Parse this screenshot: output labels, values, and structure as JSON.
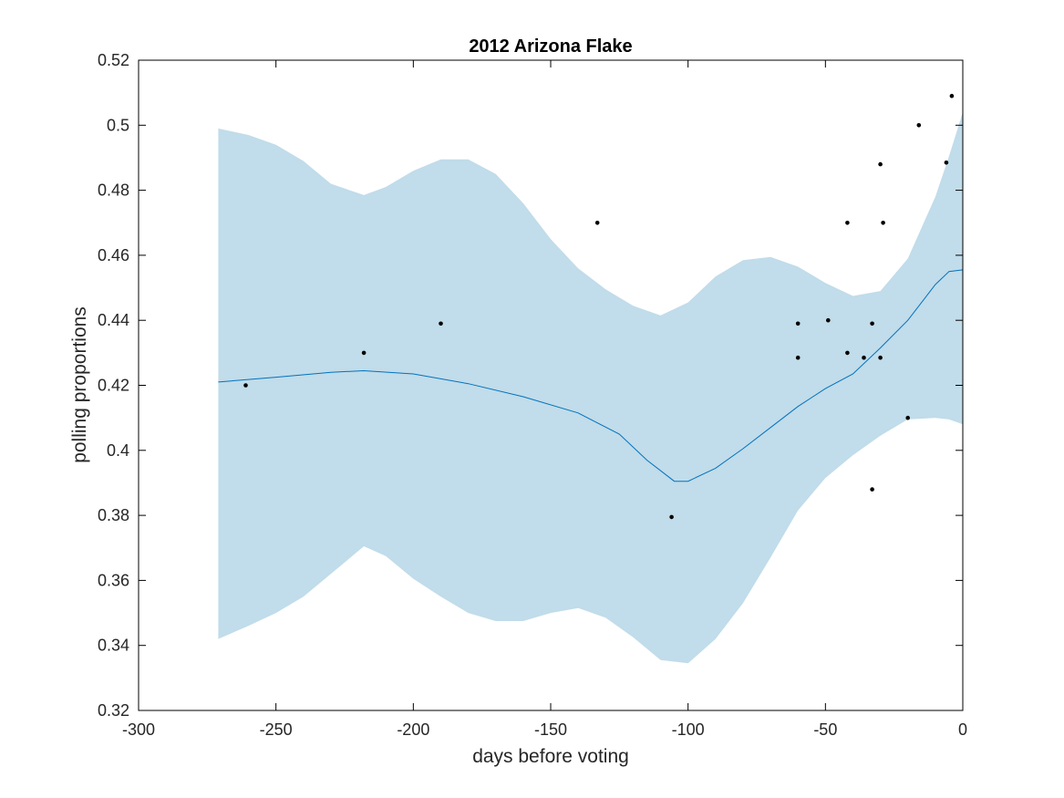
{
  "chart_data": {
    "type": "scatter",
    "title": "2012 Arizona Flake",
    "xlabel": "days before voting",
    "ylabel": "polling proportions",
    "xlim": [
      -300,
      0
    ],
    "ylim": [
      0.32,
      0.52
    ],
    "xticks": [
      -300,
      -250,
      -200,
      -150,
      -100,
      -50,
      0
    ],
    "yticks": [
      0.32,
      0.34,
      0.36,
      0.38,
      0.4,
      0.42,
      0.44,
      0.46,
      0.48,
      0.5,
      0.52
    ],
    "grid": false,
    "colors": {
      "band": "#c1dcea",
      "line": "#0072bd",
      "points": "#000000"
    },
    "series": [
      {
        "kind": "band",
        "x": [
          -271,
          -260,
          -250,
          -240,
          -230,
          -218,
          -210,
          -200,
          -190,
          -180,
          -170,
          -160,
          -150,
          -140,
          -130,
          -120,
          -110,
          -100,
          -90,
          -80,
          -70,
          -60,
          -50,
          -40,
          -30,
          -20,
          -10,
          -5,
          0
        ],
        "upper": [
          0.499,
          0.497,
          0.494,
          0.489,
          0.482,
          0.4785,
          0.481,
          0.486,
          0.4895,
          0.4895,
          0.485,
          0.476,
          0.465,
          0.456,
          0.4495,
          0.4445,
          0.4415,
          0.4455,
          0.4535,
          0.4585,
          0.4595,
          0.4565,
          0.4515,
          0.4475,
          0.449,
          0.459,
          0.478,
          0.4905,
          0.504
        ],
        "lower": [
          0.342,
          0.346,
          0.35,
          0.355,
          0.362,
          0.3705,
          0.3675,
          0.3605,
          0.355,
          0.35,
          0.3475,
          0.3475,
          0.35,
          0.3515,
          0.3485,
          0.3425,
          0.3355,
          0.3345,
          0.342,
          0.353,
          0.367,
          0.3815,
          0.3915,
          0.3985,
          0.4045,
          0.4095,
          0.41,
          0.4095,
          0.408
        ]
      },
      {
        "kind": "line",
        "x": [
          -271,
          -250,
          -230,
          -218,
          -200,
          -180,
          -160,
          -140,
          -125,
          -115,
          -105,
          -100,
          -90,
          -80,
          -70,
          -60,
          -50,
          -40,
          -30,
          -20,
          -10,
          -5,
          0
        ],
        "y": [
          0.421,
          0.4225,
          0.424,
          0.4245,
          0.4235,
          0.4205,
          0.4165,
          0.4115,
          0.405,
          0.397,
          0.3905,
          0.3905,
          0.3945,
          0.4005,
          0.407,
          0.4135,
          0.419,
          0.4235,
          0.4315,
          0.44,
          0.451,
          0.455,
          0.4555
        ]
      },
      {
        "kind": "points",
        "x": [
          -261,
          -218,
          -190,
          -133,
          -106,
          -60,
          -60,
          -49,
          -42,
          -42,
          -36,
          -33,
          -33,
          -30,
          -30,
          -29,
          -20,
          -16,
          -6,
          -4
        ],
        "y": [
          0.42,
          0.43,
          0.439,
          0.47,
          0.3795,
          0.439,
          0.4285,
          0.44,
          0.47,
          0.43,
          0.4285,
          0.439,
          0.388,
          0.488,
          0.4285,
          0.47,
          0.41,
          0.5,
          0.4885,
          0.509
        ]
      }
    ]
  }
}
